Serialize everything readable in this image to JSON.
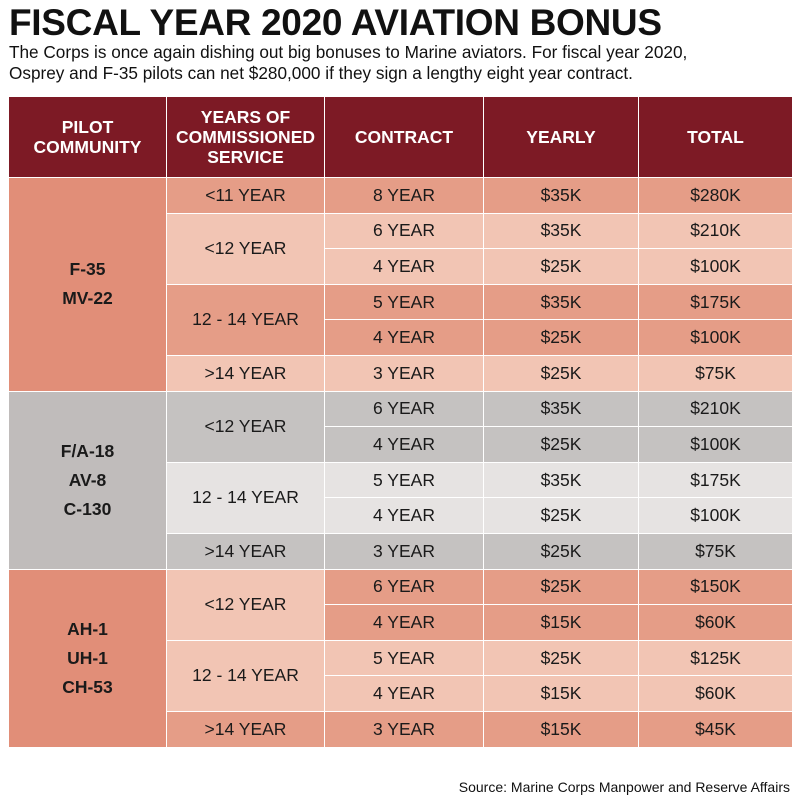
{
  "title": "FISCAL YEAR 2020 AVIATION BONUS",
  "subtitle_lines": [
    "The Corps is once again dishing out big bonuses to Marine aviators. For fiscal year 2020,",
    "Osprey and F-35 pilots can net $280,000 if they sign a lengthy eight year contract."
  ],
  "headers": {
    "community": [
      "PILOT",
      "COMMUNITY"
    ],
    "years": [
      "YEARS OF",
      "COMMISSIONED",
      "SERVICE"
    ],
    "contract": "CONTRACT",
    "yearly": "YEARLY",
    "total": "TOTAL"
  },
  "groups": [
    {
      "community": [
        "F-35",
        "MV-22"
      ],
      "rows": [
        {
          "service": "<11 YEAR",
          "contract": "8 YEAR",
          "yearly": "$35K",
          "total": "$280K"
        },
        {
          "service": "<12 YEAR",
          "contract": "6 YEAR",
          "yearly": "$35K",
          "total": "$210K"
        },
        {
          "service": "",
          "contract": "4 YEAR",
          "yearly": "$25K",
          "total": "$100K"
        },
        {
          "service": "12 - 14 YEAR",
          "contract": "5 YEAR",
          "yearly": "$35K",
          "total": "$175K"
        },
        {
          "service": "",
          "contract": "4 YEAR",
          "yearly": "$25K",
          "total": "$100K"
        },
        {
          "service": ">14 YEAR",
          "contract": "3 YEAR",
          "yearly": "$25K",
          "total": "$75K"
        }
      ]
    },
    {
      "community": [
        "F/A-18",
        "AV-8",
        "C-130"
      ],
      "rows": [
        {
          "service": "<12 YEAR",
          "contract": "6 YEAR",
          "yearly": "$35K",
          "total": "$210K"
        },
        {
          "service": "",
          "contract": "4 YEAR",
          "yearly": "$25K",
          "total": "$100K"
        },
        {
          "service": "12 - 14 YEAR",
          "contract": "5 YEAR",
          "yearly": "$35K",
          "total": "$175K"
        },
        {
          "service": "",
          "contract": "4 YEAR",
          "yearly": "$25K",
          "total": "$100K"
        },
        {
          "service": ">14 YEAR",
          "contract": "3 YEAR",
          "yearly": "$25K",
          "total": "$75K"
        }
      ]
    },
    {
      "community": [
        "AH-1",
        "UH-1",
        "CH-53"
      ],
      "rows": [
        {
          "service": "<12 YEAR",
          "contract": "6 YEAR",
          "yearly": "$25K",
          "total": "$150K"
        },
        {
          "service": "",
          "contract": "4 YEAR",
          "yearly": "$15K",
          "total": "$60K"
        },
        {
          "service": "12 - 14 YEAR",
          "contract": "5 YEAR",
          "yearly": "$25K",
          "total": "$125K"
        },
        {
          "service": "",
          "contract": "4 YEAR",
          "yearly": "$15K",
          "total": "$60K"
        },
        {
          "service": ">14 YEAR",
          "contract": "3 YEAR",
          "yearly": "$15K",
          "total": "$45K"
        }
      ]
    }
  ],
  "source": "Source: Marine Corps Manpower and Reserve Affairs",
  "colors": {
    "header": "#7d1a25",
    "salmon_community": "#e18e78",
    "salmon_dark": "#e59d87",
    "salmon_light": "#f2c5b4",
    "gray_community": "#c0bcbb",
    "gray_dark": "#c5c2c1",
    "gray_light": "#e6e3e2"
  }
}
